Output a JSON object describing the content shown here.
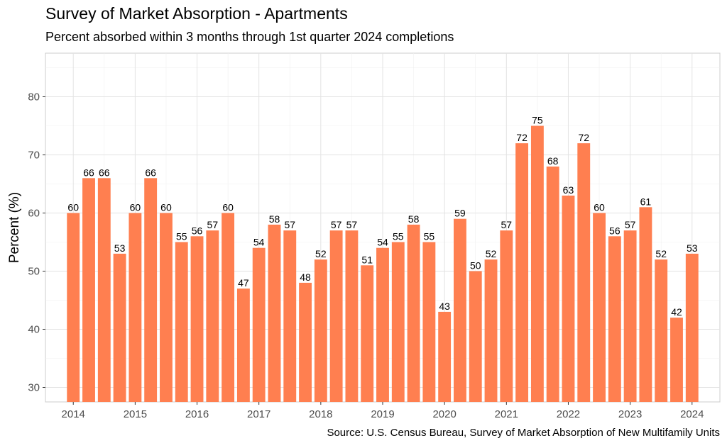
{
  "chart_data": {
    "type": "bar",
    "title": "Survey of Market Absorption - Apartments",
    "subtitle": "Percent absorbed within 3 months through 1st quarter 2024 completions",
    "caption": "Source: U.S. Census Bureau, Survey of Market Absorption of New Multifamily Units",
    "ylabel": "Percent (%)",
    "xlabel": "",
    "ylim": [
      27.5,
      87.5
    ],
    "yticks": [
      30,
      40,
      50,
      60,
      70,
      80
    ],
    "xlim": [
      2013.55,
      2024.45
    ],
    "xticks": [
      2014,
      2015,
      2016,
      2017,
      2018,
      2019,
      2020,
      2021,
      2022,
      2023,
      2024
    ],
    "grid": true,
    "bar_color": "#FF7F50",
    "x": [
      2014,
      2014.25,
      2014.5,
      2014.75,
      2015,
      2015.25,
      2015.5,
      2015.75,
      2016,
      2016.25,
      2016.5,
      2016.75,
      2017,
      2017.25,
      2017.5,
      2017.75,
      2018,
      2018.25,
      2018.5,
      2018.75,
      2019,
      2019.25,
      2019.5,
      2019.75,
      2020,
      2020.25,
      2020.5,
      2020.75,
      2021,
      2021.25,
      2021.5,
      2021.75,
      2022,
      2022.25,
      2022.5,
      2022.75,
      2023,
      2023.25,
      2023.5,
      2023.75,
      2024
    ],
    "values": [
      60,
      66,
      66,
      53,
      60,
      66,
      60,
      55,
      56,
      57,
      60,
      47,
      54,
      58,
      57,
      48,
      52,
      57,
      57,
      51,
      54,
      55,
      58,
      55,
      43,
      59,
      50,
      52,
      57,
      72,
      75,
      68,
      63,
      72,
      60,
      56,
      57,
      61,
      52,
      42,
      53
    ]
  }
}
